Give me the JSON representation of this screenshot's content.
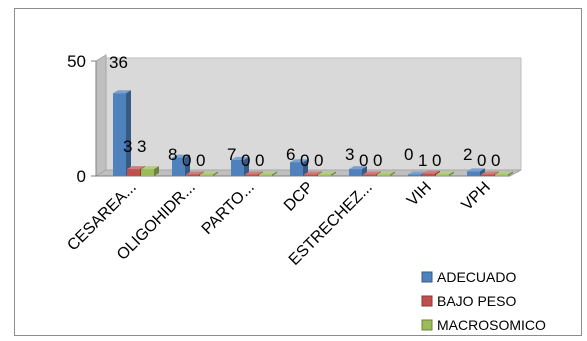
{
  "chart_data": {
    "type": "bar",
    "title": "",
    "xlabel": "",
    "ylabel": "",
    "ylim": [
      0,
      50
    ],
    "y_ticks": [
      "0",
      "50"
    ],
    "three_d": true,
    "legend_position": "bottom-right",
    "categories": [
      "CESAREA...",
      "OLIGOHIDR...",
      "PARTO...",
      "DCP",
      "ESTRECHEZ...",
      "VIH",
      "VPH"
    ],
    "series": [
      {
        "name": "ADECUADO",
        "color": "#4f81bd",
        "values": [
          36,
          8,
          7,
          6,
          3,
          0,
          2
        ],
        "labels": [
          "36",
          "8",
          "7",
          "6",
          "3",
          "0",
          "2"
        ]
      },
      {
        "name": "BAJO PESO",
        "color": "#c0504d",
        "values": [
          3,
          0,
          0,
          0,
          0,
          1,
          0
        ],
        "labels": [
          "3",
          "0",
          "0",
          "0",
          "0",
          "1",
          "0"
        ]
      },
      {
        "name": "MACROSOMICO",
        "color": "#9bbb59",
        "values": [
          3,
          0,
          0,
          0,
          0,
          0,
          0
        ],
        "labels": [
          "3",
          "0",
          "0",
          "0",
          "0",
          "0",
          "0"
        ]
      }
    ]
  }
}
